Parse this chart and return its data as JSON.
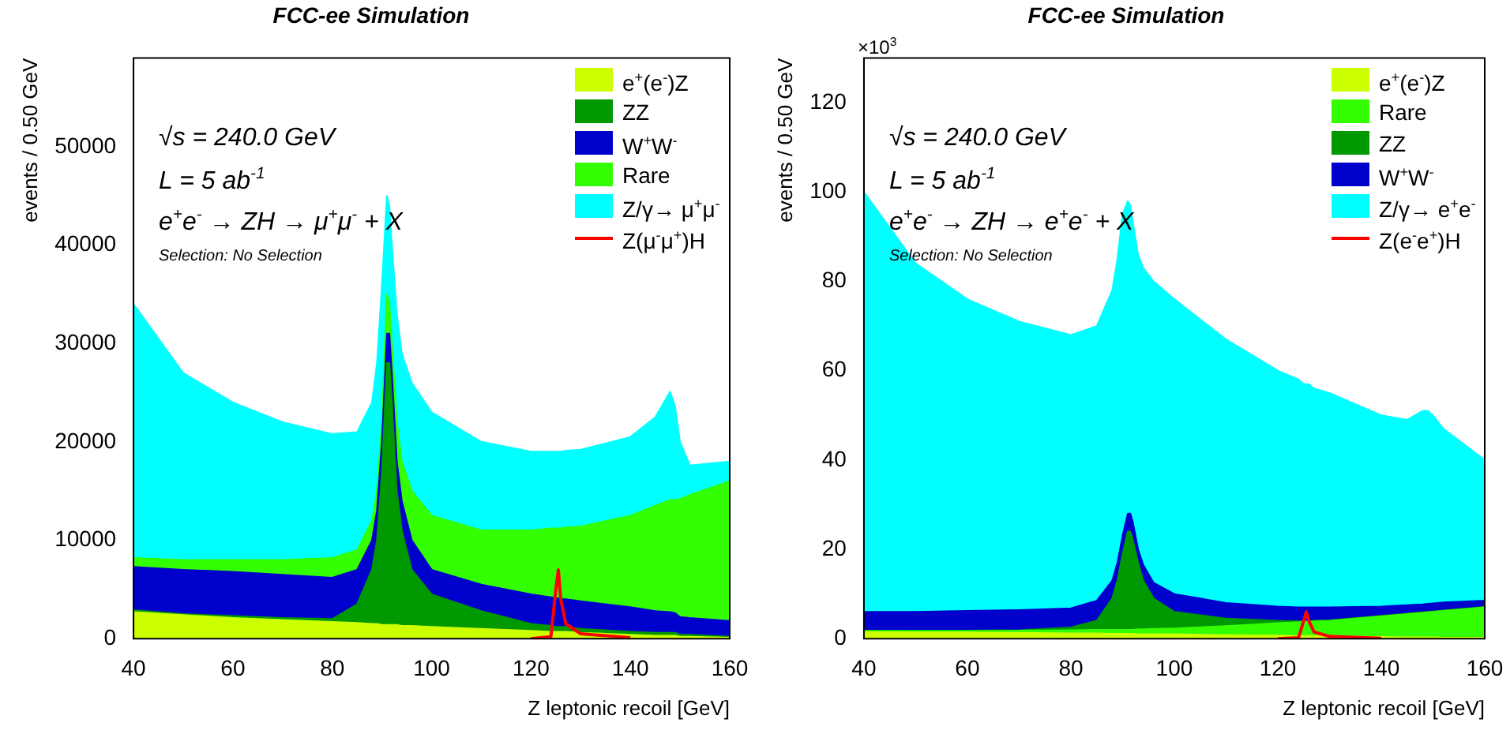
{
  "chart_data": [
    {
      "type": "area",
      "title": "FCC-ee Simulation",
      "xlabel": "Z leptonic recoil [GeV]",
      "ylabel": "events / 0.50 GeV",
      "annotations": [
        "√s = 240.0 GeV",
        "L = 5 ab$^{-1}$",
        "e$^{+}$e$^{-}$ → ZH → μ$^{+}$μ$^{-}$ + X",
        "Selection: No Selection"
      ],
      "stacked": true,
      "legend": "top right",
      "xlim": [
        40,
        160
      ],
      "xticks": [
        40,
        60,
        80,
        100,
        120,
        140,
        160
      ],
      "ylim": [
        0,
        59000
      ],
      "yticks": [
        0,
        10000,
        20000,
        30000,
        40000,
        50000
      ],
      "x": [
        40,
        50,
        60,
        70,
        80,
        85,
        88,
        89,
        90,
        91,
        91.5,
        92,
        93,
        94,
        96,
        100,
        110,
        120,
        124,
        125,
        125.5,
        126,
        127,
        130,
        140,
        145,
        148,
        149,
        150,
        152,
        160
      ],
      "series": [
        {
          "name": "e$^{+}$(e$^{-}$)Z",
          "color": "#ccff00",
          "values": [
            2700,
            2400,
            2100,
            1900,
            1700,
            1600,
            1500,
            1500,
            1400,
            1400,
            1400,
            1400,
            1400,
            1300,
            1300,
            1200,
            1000,
            800,
            700,
            700,
            700,
            700,
            700,
            600,
            400,
            300,
            300,
            300,
            200,
            200,
            100
          ]
        },
        {
          "name": "ZZ",
          "color": "#009900",
          "values": [
            200,
            100,
            200,
            200,
            300,
            1900,
            5500,
            8500,
            15600,
            26600,
            26600,
            22600,
            13600,
            9700,
            5700,
            3300,
            1800,
            700,
            600,
            500,
            500,
            500,
            500,
            400,
            300,
            300,
            300,
            300,
            200,
            200,
            100
          ]
        },
        {
          "name": "W$^{+}$W$^{-}$",
          "color": "#0000cc",
          "values": [
            4400,
            4500,
            4500,
            4400,
            4200,
            3500,
            3000,
            3000,
            3000,
            3000,
            3000,
            3000,
            3000,
            3000,
            3000,
            2500,
            2700,
            3000,
            2900,
            2900,
            2900,
            2800,
            2800,
            2800,
            2500,
            2200,
            2100,
            2000,
            1800,
            1700,
            1600
          ]
        },
        {
          "name": "Rare",
          "color": "#33ff00",
          "values": [
            900,
            1000,
            1200,
            1500,
            2000,
            2000,
            2000,
            2000,
            2000,
            4000,
            3000,
            3000,
            4000,
            4000,
            5000,
            5500,
            5500,
            6500,
            7000,
            7100,
            7100,
            7200,
            7300,
            7600,
            9300,
            10700,
            11400,
            11500,
            12000,
            12500,
            14200
          ]
        },
        {
          "name": "Z/γ→ μ$^{+}$μ$^{-}$",
          "color": "#00ffff",
          "values": [
            25800,
            19000,
            16000,
            14000,
            12600,
            12000,
            12000,
            13000,
            14000,
            10000,
            10000,
            10000,
            11000,
            11000,
            11000,
            10500,
            9000,
            8000,
            7800,
            7800,
            7800,
            7800,
            7800,
            7800,
            8000,
            9000,
            11000,
            9500,
            5800,
            3000,
            2000
          ]
        },
        {
          "name": "Z(μ$^{-}$μ$^{+}$)H",
          "color": "#ff0000",
          "type": "line",
          "values": [
            null,
            null,
            null,
            null,
            null,
            null,
            null,
            null,
            null,
            null,
            null,
            null,
            null,
            null,
            null,
            null,
            null,
            0,
            200,
            5000,
            7000,
            4000,
            1500,
            500,
            100,
            null,
            null,
            null,
            null,
            null,
            null
          ]
        }
      ]
    },
    {
      "type": "area",
      "title": "FCC-ee Simulation",
      "xlabel": "Z leptonic recoil [GeV]",
      "ylabel": "events / 0.50 GeV",
      "annotations": [
        "√s = 240.0 GeV",
        "L = 5 ab$^{-1}$",
        "e$^{+}$e$^{-}$ → ZH → e$^{+}$e$^{-}$ + X",
        "Selection: No Selection",
        "×10$^{3}$"
      ],
      "stacked": true,
      "legend": "top right",
      "xlim": [
        40,
        160
      ],
      "xticks": [
        40,
        60,
        80,
        100,
        120,
        140,
        160
      ],
      "ylim": [
        0,
        130
      ],
      "yticks": [
        0,
        20,
        40,
        60,
        80,
        100,
        120
      ],
      "x": [
        40,
        50,
        60,
        70,
        80,
        85,
        88,
        89,
        90,
        91,
        91.5,
        92,
        93,
        94,
        96,
        100,
        110,
        120,
        124,
        125,
        125.5,
        126,
        127,
        130,
        140,
        145,
        148,
        149,
        150,
        152,
        160
      ],
      "series": [
        {
          "name": "e$^{+}$(e$^{-}$)Z",
          "color": "#ccff00",
          "values": [
            1.5,
            1.4,
            1.4,
            1.3,
            1.2,
            1.2,
            1.1,
            1.1,
            1.1,
            1.1,
            1.1,
            1.1,
            1.0,
            1.0,
            1.0,
            1.0,
            0.8,
            0.7,
            0.6,
            0.6,
            0.6,
            0.6,
            0.6,
            0.5,
            0.4,
            0.3,
            0.3,
            0.3,
            0.3,
            0.2,
            0.2
          ]
        },
        {
          "name": "Rare",
          "color": "#33ff00",
          "values": [
            0.2,
            0.3,
            0.3,
            0.5,
            0.7,
            0.8,
            0.9,
            0.9,
            0.9,
            0.9,
            0.9,
            0.9,
            1.1,
            1.1,
            1.2,
            1.3,
            2.0,
            2.8,
            3.1,
            3.2,
            3.2,
            3.2,
            3.3,
            3.5,
            4.6,
            5.2,
            5.5,
            5.6,
            5.7,
            6.0,
            6.8
          ]
        },
        {
          "name": "ZZ",
          "color": "#009900",
          "values": [
            0.1,
            0.1,
            0.1,
            0.1,
            0.6,
            2.0,
            7.0,
            11.0,
            17.0,
            22.0,
            22.0,
            20.0,
            14.9,
            10.9,
            6.8,
            3.7,
            1.7,
            0.5,
            0.2,
            0.1,
            0.1,
            0.1,
            0.1,
            0.1,
            0.1,
            0.1,
            0.1,
            0.1,
            0.1,
            0.1,
            0.1
          ]
        },
        {
          "name": "W$^{+}$W$^{-}$",
          "color": "#0000cc",
          "values": [
            4.2,
            4.2,
            4.4,
            4.5,
            4.3,
            4.5,
            4.0,
            4.0,
            4.0,
            4.0,
            4.0,
            4.0,
            3.0,
            3.5,
            3.5,
            4.0,
            3.5,
            3.2,
            3.1,
            3.1,
            3.1,
            3.1,
            3.0,
            2.9,
            2.1,
            1.9,
            1.8,
            1.8,
            1.8,
            1.8,
            1.4
          ]
        },
        {
          "name": "Z/γ→ e$^{+}$e$^{-}$",
          "color": "#00ffff",
          "values": [
            94,
            78,
            69.8,
            64.6,
            61.2,
            61.5,
            65,
            68,
            72,
            70,
            69,
            67,
            66,
            66.5,
            67.5,
            66,
            59,
            52.8,
            51,
            50,
            50,
            50,
            49,
            48,
            42.8,
            41.5,
            43.3,
            43.2,
            42.1,
            38.9,
            31.5
          ]
        },
        {
          "name": "Z(e$^{-}$e$^{+}$)H",
          "color": "#ff0000",
          "type": "line",
          "values": [
            null,
            null,
            null,
            null,
            null,
            null,
            null,
            null,
            null,
            null,
            null,
            null,
            null,
            null,
            null,
            null,
            null,
            0,
            0.2,
            4,
            6,
            4,
            1.5,
            0.5,
            0.1,
            null,
            null,
            null,
            null,
            null,
            null
          ]
        }
      ]
    }
  ]
}
